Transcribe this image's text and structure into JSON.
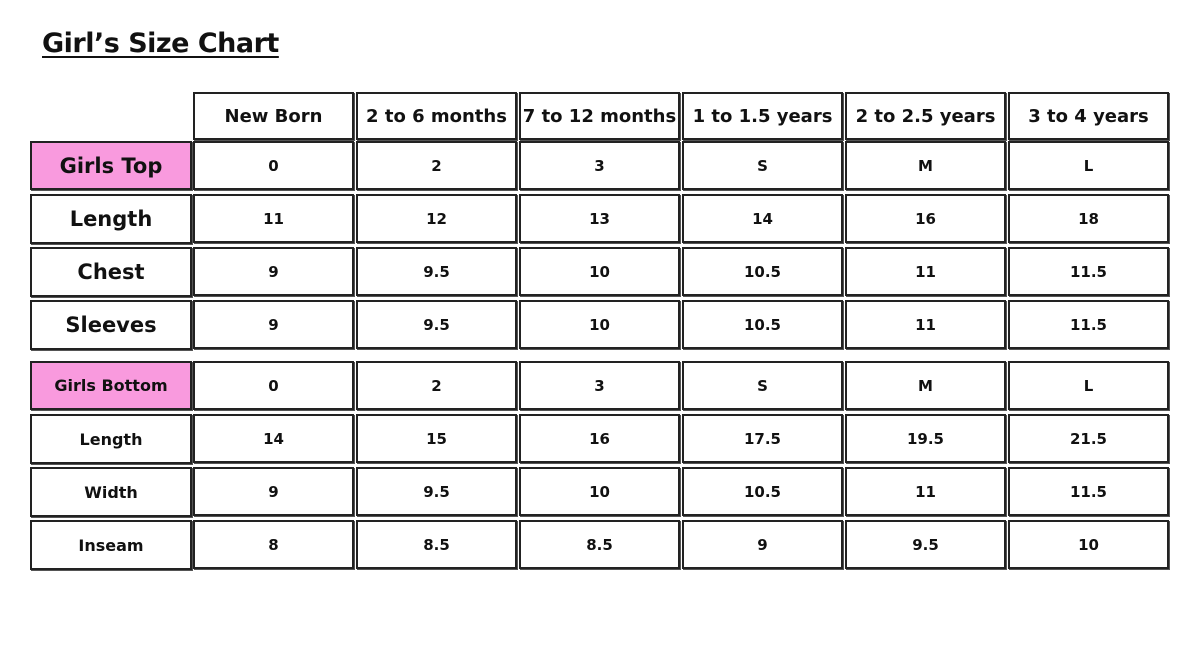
{
  "title": "Girl’s Size Chart",
  "accent_color": "#f99ade",
  "columns": [
    "New Born",
    "2 to 6 months",
    "7 to 12 months",
    "1 to 1.5 years",
    "2 to 2.5 years",
    "3 to 4 years"
  ],
  "tops": {
    "label": "Girls Top",
    "sizes": [
      "0",
      "2",
      "3",
      "S",
      "M",
      "L"
    ],
    "rows": [
      {
        "label": "Length",
        "values": [
          "11",
          "12",
          "13",
          "14",
          "16",
          "18"
        ]
      },
      {
        "label": "Chest",
        "values": [
          "9",
          "9.5",
          "10",
          "10.5",
          "11",
          "11.5"
        ]
      },
      {
        "label": "Sleeves",
        "values": [
          "9",
          "9.5",
          "10",
          "10.5",
          "11",
          "11.5"
        ]
      }
    ]
  },
  "bottoms": {
    "label": "Girls Bottom",
    "sizes": [
      "0",
      "2",
      "3",
      "S",
      "M",
      "L"
    ],
    "rows": [
      {
        "label": "Length",
        "values": [
          "14",
          "15",
          "16",
          "17.5",
          "19.5",
          "21.5"
        ]
      },
      {
        "label": "Width",
        "values": [
          "9",
          "9.5",
          "10",
          "10.5",
          "11",
          "11.5"
        ]
      },
      {
        "label": "Inseam",
        "values": [
          "8",
          "8.5",
          "8.5",
          "9",
          "9.5",
          "10"
        ]
      }
    ]
  }
}
